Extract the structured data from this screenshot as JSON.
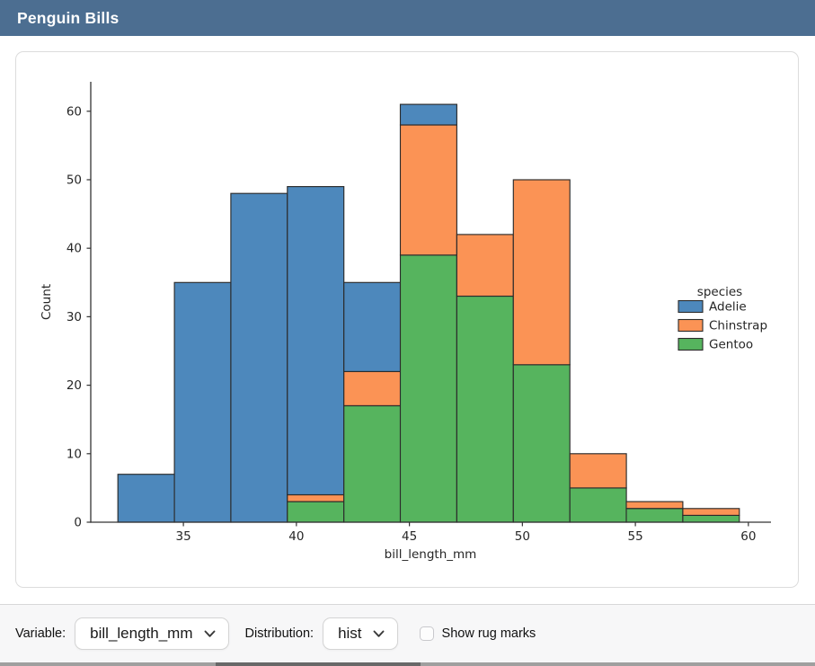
{
  "header": {
    "title": "Penguin Bills",
    "bg_color": "#4C6E91"
  },
  "controls": {
    "variable_label": "Variable:",
    "variable_value": "bill_length_mm",
    "distribution_label": "Distribution:",
    "distribution_value": "hist",
    "rug_label": "Show rug marks",
    "rug_checked": false
  },
  "chart_data": {
    "type": "bar",
    "subtype": "stacked-histogram",
    "xlabel": "bill_length_mm",
    "ylabel": "Count",
    "bin_edges": [
      32.1,
      34.6,
      37.1,
      39.6,
      42.1,
      44.6,
      47.1,
      49.6,
      52.1,
      54.6,
      57.1,
      59.6
    ],
    "series": [
      {
        "name": "Adelie",
        "color": "#4D88BC",
        "values": [
          7,
          35,
          48,
          45,
          13,
          3,
          0,
          0,
          0,
          0,
          0
        ]
      },
      {
        "name": "Chinstrap",
        "color": "#FB9355",
        "values": [
          0,
          0,
          0,
          1,
          5,
          19,
          9,
          27,
          5,
          1,
          1
        ]
      },
      {
        "name": "Gentoo",
        "color": "#56B45E",
        "values": [
          0,
          0,
          0,
          3,
          17,
          39,
          33,
          23,
          5,
          2,
          1
        ]
      }
    ],
    "stack_order": [
      "Gentoo",
      "Chinstrap",
      "Adelie"
    ],
    "bin_totals": [
      7,
      35,
      48,
      49,
      35,
      61,
      42,
      50,
      10,
      3,
      2
    ],
    "legend": {
      "title": "species",
      "entries": [
        "Adelie",
        "Chinstrap",
        "Gentoo"
      ],
      "position": "right"
    },
    "x_ticks": [
      35,
      40,
      45,
      50,
      55,
      60
    ],
    "y_ticks": [
      0,
      10,
      20,
      30,
      40,
      50,
      60
    ],
    "xlim": [
      30.9,
      61.0
    ],
    "ylim": [
      0,
      64.3
    ],
    "grid": false,
    "bar_edge_color": "#2B2B2B"
  }
}
